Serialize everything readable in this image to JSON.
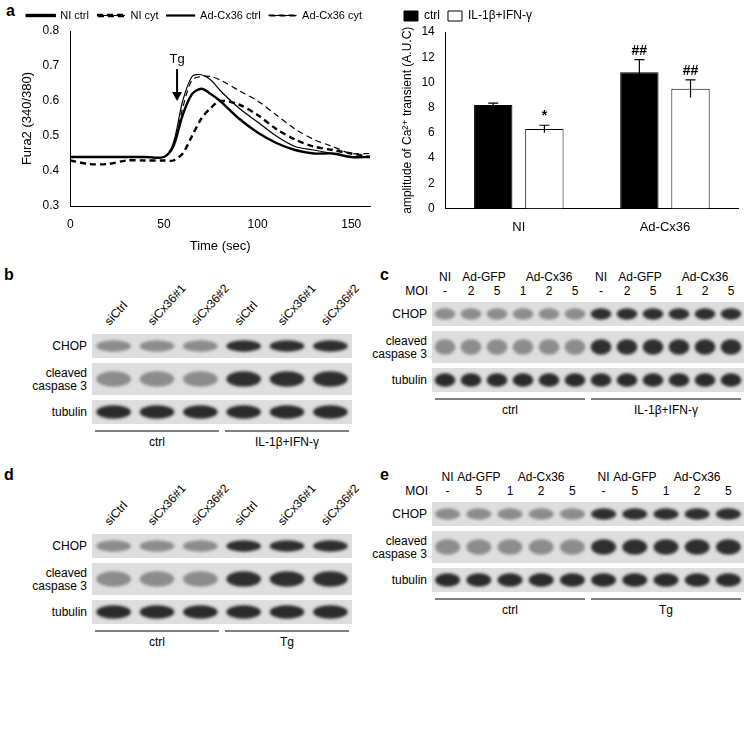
{
  "panel": "a",
  "chart_data": [
    {
      "type": "line",
      "x_label": "Time (sec)",
      "y_label": "Fura2 (340/380)",
      "x": [
        0,
        10,
        20,
        30,
        40,
        50,
        55,
        60,
        65,
        70,
        75,
        80,
        90,
        100,
        110,
        120,
        130,
        140,
        150,
        160
      ],
      "series": [
        {
          "name": "NI ctrl",
          "color": "#000000",
          "line_style": "solid",
          "values": [
            0.44,
            0.44,
            0.44,
            0.44,
            0.44,
            0.44,
            0.47,
            0.56,
            0.62,
            0.635,
            0.62,
            0.6,
            0.55,
            0.51,
            0.48,
            0.46,
            0.45,
            0.45,
            0.44,
            0.44
          ]
        },
        {
          "name": "NI cyt",
          "color": "#000000",
          "line_style": "dashed",
          "values": [
            0.43,
            0.42,
            0.42,
            0.43,
            0.43,
            0.43,
            0.43,
            0.45,
            0.5,
            0.55,
            0.58,
            0.6,
            0.59,
            0.56,
            0.52,
            0.49,
            0.47,
            0.46,
            0.45,
            0.44
          ]
        },
        {
          "name": "Ad-Cx36 ctrl",
          "color": "#000000",
          "line_style": "solid",
          "values": [
            0.44,
            0.44,
            0.44,
            0.44,
            0.44,
            0.44,
            0.48,
            0.6,
            0.67,
            0.675,
            0.66,
            0.63,
            0.58,
            0.54,
            0.5,
            0.47,
            0.46,
            0.45,
            0.44,
            0.44
          ]
        },
        {
          "name": "Ad-Cx36 cyt",
          "color": "#000000",
          "line_style": "dashed",
          "values": [
            0.44,
            0.44,
            0.44,
            0.44,
            0.44,
            0.44,
            0.47,
            0.58,
            0.66,
            0.67,
            0.67,
            0.66,
            0.63,
            0.6,
            0.56,
            0.52,
            0.49,
            0.47,
            0.45,
            0.45
          ]
        }
      ],
      "xlim": [
        0,
        160
      ],
      "xticks": [
        0,
        50,
        100,
        150
      ],
      "ylim": [
        0.3,
        0.8
      ],
      "yticks": [
        0.3,
        0.4,
        0.5,
        0.6,
        0.7,
        0.8
      ],
      "annotations": [
        {
          "text": "Tg",
          "x": 57,
          "y": 0.6
        }
      ],
      "legend": "upper right",
      "grid": false
    },
    {
      "type": "bar",
      "y_label": "amplitude of Ca²⁺ transient (A.U.C)",
      "categories": [
        "NI",
        "Ad-Cx36"
      ],
      "series": [
        {
          "name": "ctrl",
          "color": "#000000",
          "values": [
            8.2,
            10.8
          ],
          "errors": [
            0.15,
            1.0
          ]
        },
        {
          "name": "IL-1β+IFN-γ",
          "color": "#ffffff",
          "values": [
            6.3,
            9.5
          ],
          "errors": [
            0.3,
            0.7
          ]
        }
      ],
      "ylim": [
        0,
        14
      ],
      "yticks": [
        0,
        2,
        4,
        6,
        8,
        10,
        12,
        14
      ],
      "annotations": [
        {
          "series": "IL-1β+IFN-γ",
          "category": "NI",
          "text": "*"
        },
        {
          "series": "ctrl",
          "category": "Ad-Cx36",
          "text": "##"
        },
        {
          "series": "IL-1β+IFN-γ",
          "category": "Ad-Cx36",
          "text": "##"
        }
      ],
      "legend": "upper left",
      "grid": false
    }
  ],
  "blots": [
    {
      "panel": "b",
      "rows": [
        "CHOP",
        "cleaved caspase 3",
        "tubulin"
      ],
      "groups": [
        {
          "label": "ctrl",
          "lanes": [
            "siCtrl",
            "siCx36#1",
            "siCx36#2"
          ]
        },
        {
          "label": "IL-1β+IFN-γ",
          "lanes": [
            "siCtrl",
            "siCx36#1",
            "siCx36#2"
          ]
        }
      ]
    },
    {
      "panel": "c",
      "rows": [
        "CHOP",
        "cleaved caspase 3",
        "tubulin"
      ],
      "moi_label": "MOI",
      "groups": [
        {
          "label": "ctrl",
          "vectors": [
            {
              "label": "NI",
              "moi": [
                "-"
              ]
            },
            {
              "label": "Ad-GFP",
              "moi": [
                2,
                5
              ]
            },
            {
              "label": "Ad-Cx36",
              "moi": [
                1,
                2,
                5
              ]
            }
          ]
        },
        {
          "label": "IL-1β+IFN-γ",
          "vectors": [
            {
              "label": "NI",
              "moi": [
                "-"
              ]
            },
            {
              "label": "Ad-GFP",
              "moi": [
                2,
                5
              ]
            },
            {
              "label": "Ad-Cx36",
              "moi": [
                1,
                2,
                5
              ]
            }
          ]
        }
      ]
    },
    {
      "panel": "d",
      "rows": [
        "CHOP",
        "cleaved caspase 3",
        "tubulin"
      ],
      "groups": [
        {
          "label": "ctrl",
          "lanes": [
            "siCtrl",
            "siCx36#1",
            "siCx36#2"
          ]
        },
        {
          "label": "Tg",
          "lanes": [
            "siCtrl",
            "siCx36#1",
            "siCx36#2"
          ]
        }
      ]
    },
    {
      "panel": "e",
      "rows": [
        "CHOP",
        "cleaved caspase 3",
        "tubulin"
      ],
      "moi_label": "MOI",
      "groups": [
        {
          "label": "ctrl",
          "vectors": [
            {
              "label": "NI",
              "moi": [
                "-"
              ]
            },
            {
              "label": "Ad-GFP",
              "moi": [
                5
              ]
            },
            {
              "label": "Ad-Cx36",
              "moi": [
                1,
                2,
                5
              ]
            }
          ]
        },
        {
          "label": "Tg",
          "vectors": [
            {
              "label": "NI",
              "moi": [
                "-"
              ]
            },
            {
              "label": "Ad-GFP",
              "moi": [
                5
              ]
            },
            {
              "label": "Ad-Cx36",
              "moi": [
                1,
                2,
                5
              ]
            }
          ]
        }
      ]
    }
  ]
}
